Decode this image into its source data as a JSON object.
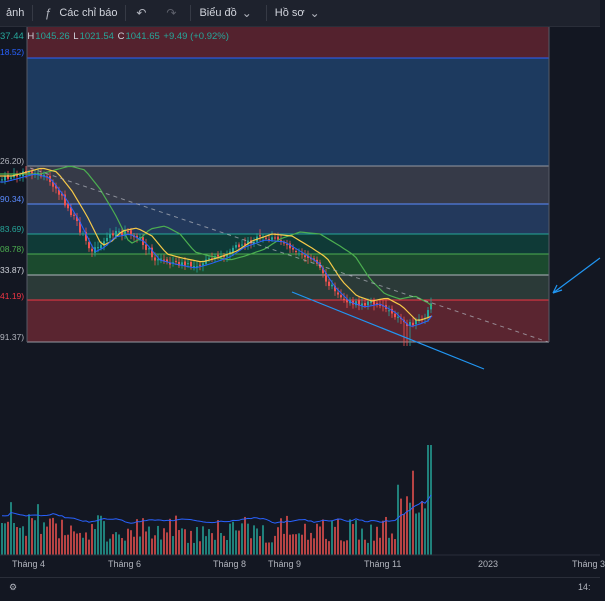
{
  "toolbar": {
    "partial_label": "ảnh",
    "indicators_label": "Các chỉ báo",
    "undo_icon": "undo-icon",
    "chart_label": "Biểu đồ",
    "profile_label": "Hồ sơ"
  },
  "ohlc": {
    "open_partial": "37.44",
    "h_key": "H",
    "high": "1045.26",
    "l_key": "L",
    "low": "1021.54",
    "c_key": "C",
    "close": "1041.65",
    "change": "+9.49 (+0.92%)"
  },
  "levels": [
    {
      "label": "18.52)",
      "color": "#2962ff"
    },
    {
      "label": "26.20)",
      "color": "#b2b5be"
    },
    {
      "label": "90.34)",
      "color": "#2962ff"
    },
    {
      "label": "83.69)",
      "color": "#26a69a"
    },
    {
      "label": "08.78)",
      "color": "#4caf50"
    },
    {
      "label": "33.87)",
      "color": "#d1d4dc"
    },
    {
      "label": "41.19)",
      "color": "#f23645"
    },
    {
      "label": "91.37)",
      "color": "#b2b5be"
    }
  ],
  "x_axis": {
    "ticks": [
      "Tháng 4",
      "Tháng 6",
      "Tháng 8",
      "Tháng 9",
      "Tháng 11",
      "2023",
      "Tháng 3"
    ]
  },
  "bottom": {
    "time_partial": "14:"
  },
  "colors": {
    "up": "#26a69a",
    "down": "#ef5350",
    "ma_fast": "#f7c948",
    "ma_slow": "#4caf50",
    "ma_mid": "#2962ff",
    "trendline": "#2196f3"
  }
}
